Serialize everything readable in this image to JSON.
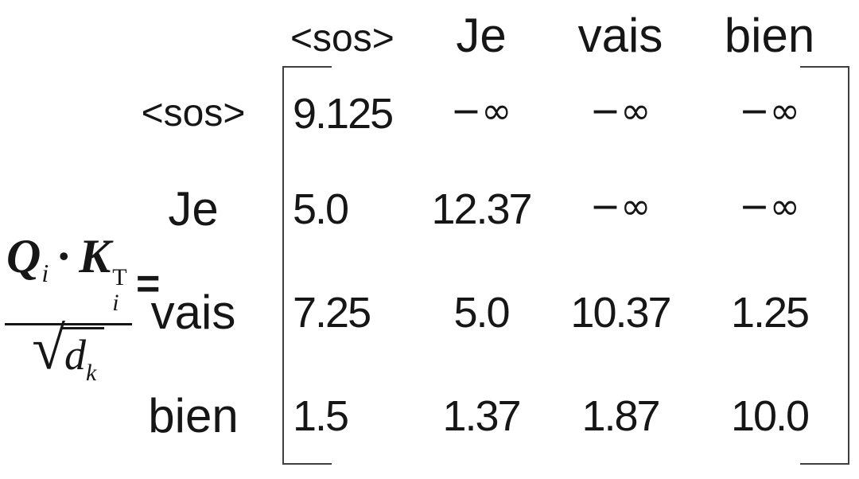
{
  "equation": {
    "numerator": {
      "Q": "Q",
      "Q_sub": "i",
      "dot": "·",
      "K": "K",
      "K_sub": "i",
      "K_sup": "T"
    },
    "denominator": {
      "radical_symbol": "√",
      "var": "d",
      "var_sub": "k"
    },
    "equals_sign": "="
  },
  "matrix": {
    "column_headers": [
      "<sos>",
      "Je",
      "vais",
      "bien"
    ],
    "row_headers": [
      "<sos>",
      "Je",
      "vais",
      "bien"
    ],
    "cells": [
      [
        "9.125",
        "−∞",
        "−∞",
        "−∞"
      ],
      [
        "5.0",
        "12.37",
        "−∞",
        "−∞"
      ],
      [
        "7.25",
        "5.0",
        "10.37",
        "1.25"
      ],
      [
        "1.5",
        "1.37",
        "1.87",
        "10.0"
      ]
    ],
    "negative_infinity_symbol": "−∞"
  },
  "colors": {
    "background": "#ffffff",
    "text": "#161616",
    "bracket": "#3f3f3f"
  }
}
